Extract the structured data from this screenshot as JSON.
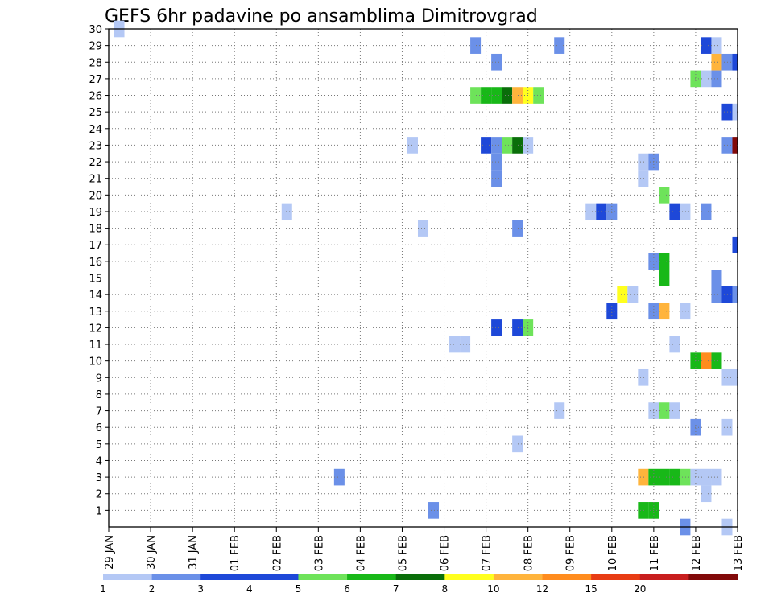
{
  "chart_data": {
    "type": "heatmap",
    "title": "GEFS 6hr padavine po ansamblima Dimitrovgrad",
    "xlabel": "",
    "ylabel": "",
    "x_tick_labels": [
      "29 JAN",
      "30 JAN",
      "31 JAN",
      "01 FEB",
      "02 FEB",
      "03 FEB",
      "04 FEB",
      "05 FEB",
      "06 FEB",
      "07 FEB",
      "08 FEB",
      "09 FEB",
      "10 FEB",
      "11 FEB",
      "12 FEB",
      "13 FEB"
    ],
    "xlim_days": [
      0,
      15
    ],
    "y_tick_labels": [
      "1",
      "2",
      "3",
      "4",
      "5",
      "6",
      "7",
      "8",
      "9",
      "10",
      "11",
      "12",
      "13",
      "14",
      "15",
      "16",
      "17",
      "18",
      "19",
      "20",
      "21",
      "22",
      "23",
      "24",
      "25",
      "26",
      "27",
      "28",
      "29",
      "30"
    ],
    "ylim": [
      0,
      30
    ],
    "grid": true,
    "legend": {
      "placement": "bottom",
      "labels": [
        "1",
        "2",
        "3",
        "4",
        "5",
        "6",
        "7",
        "8",
        "10",
        "12",
        "15",
        "20"
      ],
      "colors": [
        "#b4c8f5",
        "#6b90e8",
        "#1e48d8",
        "#1e48d8",
        "#6ee35a",
        "#18b818",
        "#0a6e0a",
        "#ffff1e",
        "#ffb43c",
        "#ff8c1e",
        "#e83c14",
        "#c81e1e",
        "#820a0a"
      ]
    },
    "cells": [
      {
        "day": 0.25,
        "member": 30,
        "color": "#b4c8f5"
      },
      {
        "day": 8.75,
        "member": 29,
        "color": "#6b90e8"
      },
      {
        "day": 10.75,
        "member": 29,
        "color": "#6b90e8"
      },
      {
        "day": 14.25,
        "member": 29,
        "color": "#1e48d8"
      },
      {
        "day": 14.5,
        "member": 29,
        "color": "#b4c8f5"
      },
      {
        "day": 9.25,
        "member": 28,
        "color": "#6b90e8"
      },
      {
        "day": 14.5,
        "member": 28,
        "color": "#ffb43c"
      },
      {
        "day": 14.75,
        "member": 28,
        "color": "#6b90e8"
      },
      {
        "day": 15.0,
        "member": 28,
        "color": "#1e48d8"
      },
      {
        "day": 14.0,
        "member": 27,
        "color": "#6ee35a"
      },
      {
        "day": 14.25,
        "member": 27,
        "color": "#b4c8f5"
      },
      {
        "day": 14.5,
        "member": 27,
        "color": "#6b90e8"
      },
      {
        "day": 8.75,
        "member": 26,
        "color": "#6ee35a"
      },
      {
        "day": 9.0,
        "member": 26,
        "color": "#18b818"
      },
      {
        "day": 9.25,
        "member": 26,
        "color": "#18b818"
      },
      {
        "day": 9.5,
        "member": 26,
        "color": "#0a6e0a"
      },
      {
        "day": 9.75,
        "member": 26,
        "color": "#ffb43c"
      },
      {
        "day": 10.0,
        "member": 26,
        "color": "#ffff1e"
      },
      {
        "day": 10.25,
        "member": 26,
        "color": "#6ee35a"
      },
      {
        "day": 14.75,
        "member": 25,
        "color": "#1e48d8"
      },
      {
        "day": 15.0,
        "member": 25,
        "color": "#b4c8f5"
      },
      {
        "day": 7.25,
        "member": 23,
        "color": "#b4c8f5"
      },
      {
        "day": 9.0,
        "member": 23,
        "color": "#1e48d8"
      },
      {
        "day": 9.25,
        "member": 23,
        "color": "#6b90e8"
      },
      {
        "day": 9.5,
        "member": 23,
        "color": "#6ee35a"
      },
      {
        "day": 9.75,
        "member": 23,
        "color": "#0a6e0a"
      },
      {
        "day": 10.0,
        "member": 23,
        "color": "#b4c8f5"
      },
      {
        "day": 14.75,
        "member": 23,
        "color": "#6b90e8"
      },
      {
        "day": 15.0,
        "member": 23,
        "color": "#820a0a"
      },
      {
        "day": 9.25,
        "member": 22,
        "color": "#6b90e8"
      },
      {
        "day": 12.75,
        "member": 22,
        "color": "#b4c8f5"
      },
      {
        "day": 13.0,
        "member": 22,
        "color": "#6b90e8"
      },
      {
        "day": 9.25,
        "member": 21,
        "color": "#6b90e8"
      },
      {
        "day": 12.75,
        "member": 21,
        "color": "#b4c8f5"
      },
      {
        "day": 13.25,
        "member": 20,
        "color": "#6ee35a"
      },
      {
        "day": 4.25,
        "member": 19,
        "color": "#b4c8f5"
      },
      {
        "day": 11.5,
        "member": 19,
        "color": "#b4c8f5"
      },
      {
        "day": 11.75,
        "member": 19,
        "color": "#1e48d8"
      },
      {
        "day": 12.0,
        "member": 19,
        "color": "#6b90e8"
      },
      {
        "day": 13.5,
        "member": 19,
        "color": "#1e48d8"
      },
      {
        "day": 13.75,
        "member": 19,
        "color": "#b4c8f5"
      },
      {
        "day": 14.25,
        "member": 19,
        "color": "#6b90e8"
      },
      {
        "day": 7.5,
        "member": 18,
        "color": "#b4c8f5"
      },
      {
        "day": 9.75,
        "member": 18,
        "color": "#6b90e8"
      },
      {
        "day": 15.0,
        "member": 17,
        "color": "#1e48d8"
      },
      {
        "day": 13.0,
        "member": 16,
        "color": "#6b90e8"
      },
      {
        "day": 13.25,
        "member": 16,
        "color": "#18b818"
      },
      {
        "day": 13.25,
        "member": 15,
        "color": "#18b818"
      },
      {
        "day": 14.5,
        "member": 15,
        "color": "#6b90e8"
      },
      {
        "day": 12.25,
        "member": 14,
        "color": "#ffff1e"
      },
      {
        "day": 12.5,
        "member": 14,
        "color": "#b4c8f5"
      },
      {
        "day": 14.5,
        "member": 14,
        "color": "#6b90e8"
      },
      {
        "day": 14.75,
        "member": 14,
        "color": "#1e48d8"
      },
      {
        "day": 15.0,
        "member": 14,
        "color": "#6b90e8"
      },
      {
        "day": 12.0,
        "member": 13,
        "color": "#1e48d8"
      },
      {
        "day": 13.0,
        "member": 13,
        "color": "#6b90e8"
      },
      {
        "day": 13.25,
        "member": 13,
        "color": "#ffb43c"
      },
      {
        "day": 13.75,
        "member": 13,
        "color": "#b4c8f5"
      },
      {
        "day": 9.25,
        "member": 12,
        "color": "#1e48d8"
      },
      {
        "day": 9.75,
        "member": 12,
        "color": "#1e48d8"
      },
      {
        "day": 10.0,
        "member": 12,
        "color": "#6ee35a"
      },
      {
        "day": 8.25,
        "member": 11,
        "color": "#b4c8f5"
      },
      {
        "day": 8.5,
        "member": 11,
        "color": "#b4c8f5"
      },
      {
        "day": 13.5,
        "member": 11,
        "color": "#b4c8f5"
      },
      {
        "day": 14.0,
        "member": 10,
        "color": "#18b818"
      },
      {
        "day": 14.25,
        "member": 10,
        "color": "#ff8c1e"
      },
      {
        "day": 14.5,
        "member": 10,
        "color": "#18b818"
      },
      {
        "day": 12.75,
        "member": 9,
        "color": "#b4c8f5"
      },
      {
        "day": 14.75,
        "member": 9,
        "color": "#b4c8f5"
      },
      {
        "day": 15.0,
        "member": 9,
        "color": "#b4c8f5"
      },
      {
        "day": 10.75,
        "member": 7,
        "color": "#b4c8f5"
      },
      {
        "day": 13.0,
        "member": 7,
        "color": "#b4c8f5"
      },
      {
        "day": 13.25,
        "member": 7,
        "color": "#6ee35a"
      },
      {
        "day": 13.5,
        "member": 7,
        "color": "#b4c8f5"
      },
      {
        "day": 14.0,
        "member": 6,
        "color": "#6b90e8"
      },
      {
        "day": 14.75,
        "member": 6,
        "color": "#b4c8f5"
      },
      {
        "day": 9.75,
        "member": 5,
        "color": "#b4c8f5"
      },
      {
        "day": 5.5,
        "member": 3,
        "color": "#6b90e8"
      },
      {
        "day": 12.75,
        "member": 3,
        "color": "#ffb43c"
      },
      {
        "day": 13.0,
        "member": 3,
        "color": "#18b818"
      },
      {
        "day": 13.25,
        "member": 3,
        "color": "#18b818"
      },
      {
        "day": 13.5,
        "member": 3,
        "color": "#18b818"
      },
      {
        "day": 13.75,
        "member": 3,
        "color": "#6ee35a"
      },
      {
        "day": 14.0,
        "member": 3,
        "color": "#b4c8f5"
      },
      {
        "day": 14.25,
        "member": 3,
        "color": "#b4c8f5"
      },
      {
        "day": 14.5,
        "member": 3,
        "color": "#b4c8f5"
      },
      {
        "day": 14.25,
        "member": 2,
        "color": "#b4c8f5"
      },
      {
        "day": 7.75,
        "member": 1,
        "color": "#6b90e8"
      },
      {
        "day": 12.75,
        "member": 1,
        "color": "#18b818"
      },
      {
        "day": 13.0,
        "member": 1,
        "color": "#18b818"
      },
      {
        "day": 13.75,
        "member": 0,
        "color": "#6b90e8"
      },
      {
        "day": 14.75,
        "member": 0,
        "color": "#b4c8f5"
      }
    ]
  }
}
